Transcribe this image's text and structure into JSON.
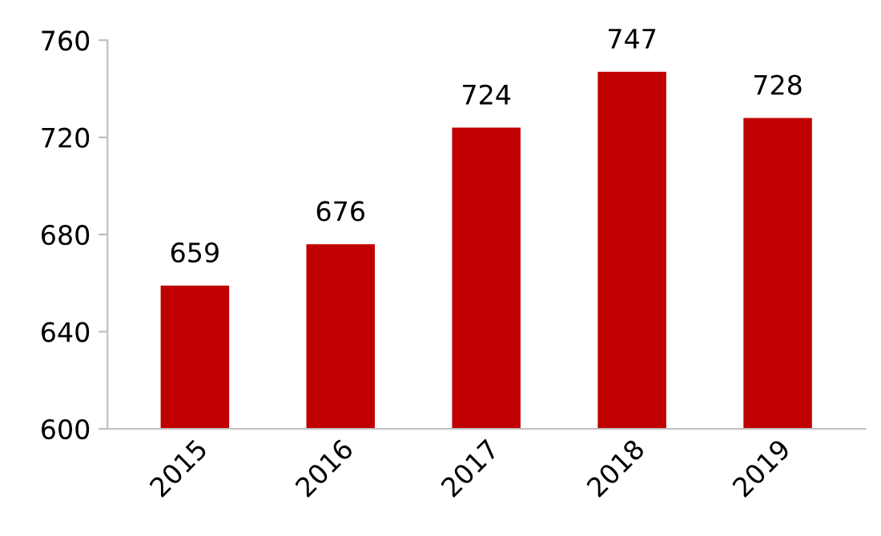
{
  "chart_data": {
    "type": "bar",
    "categories": [
      "2015",
      "2016",
      "2017",
      "2018",
      "2019"
    ],
    "values": [
      659,
      676,
      724,
      747,
      728
    ],
    "color": "#c00000",
    "ylim": [
      600,
      760
    ],
    "yticks": [
      600,
      640,
      680,
      720,
      760
    ],
    "grid": false,
    "data_labels": true
  }
}
